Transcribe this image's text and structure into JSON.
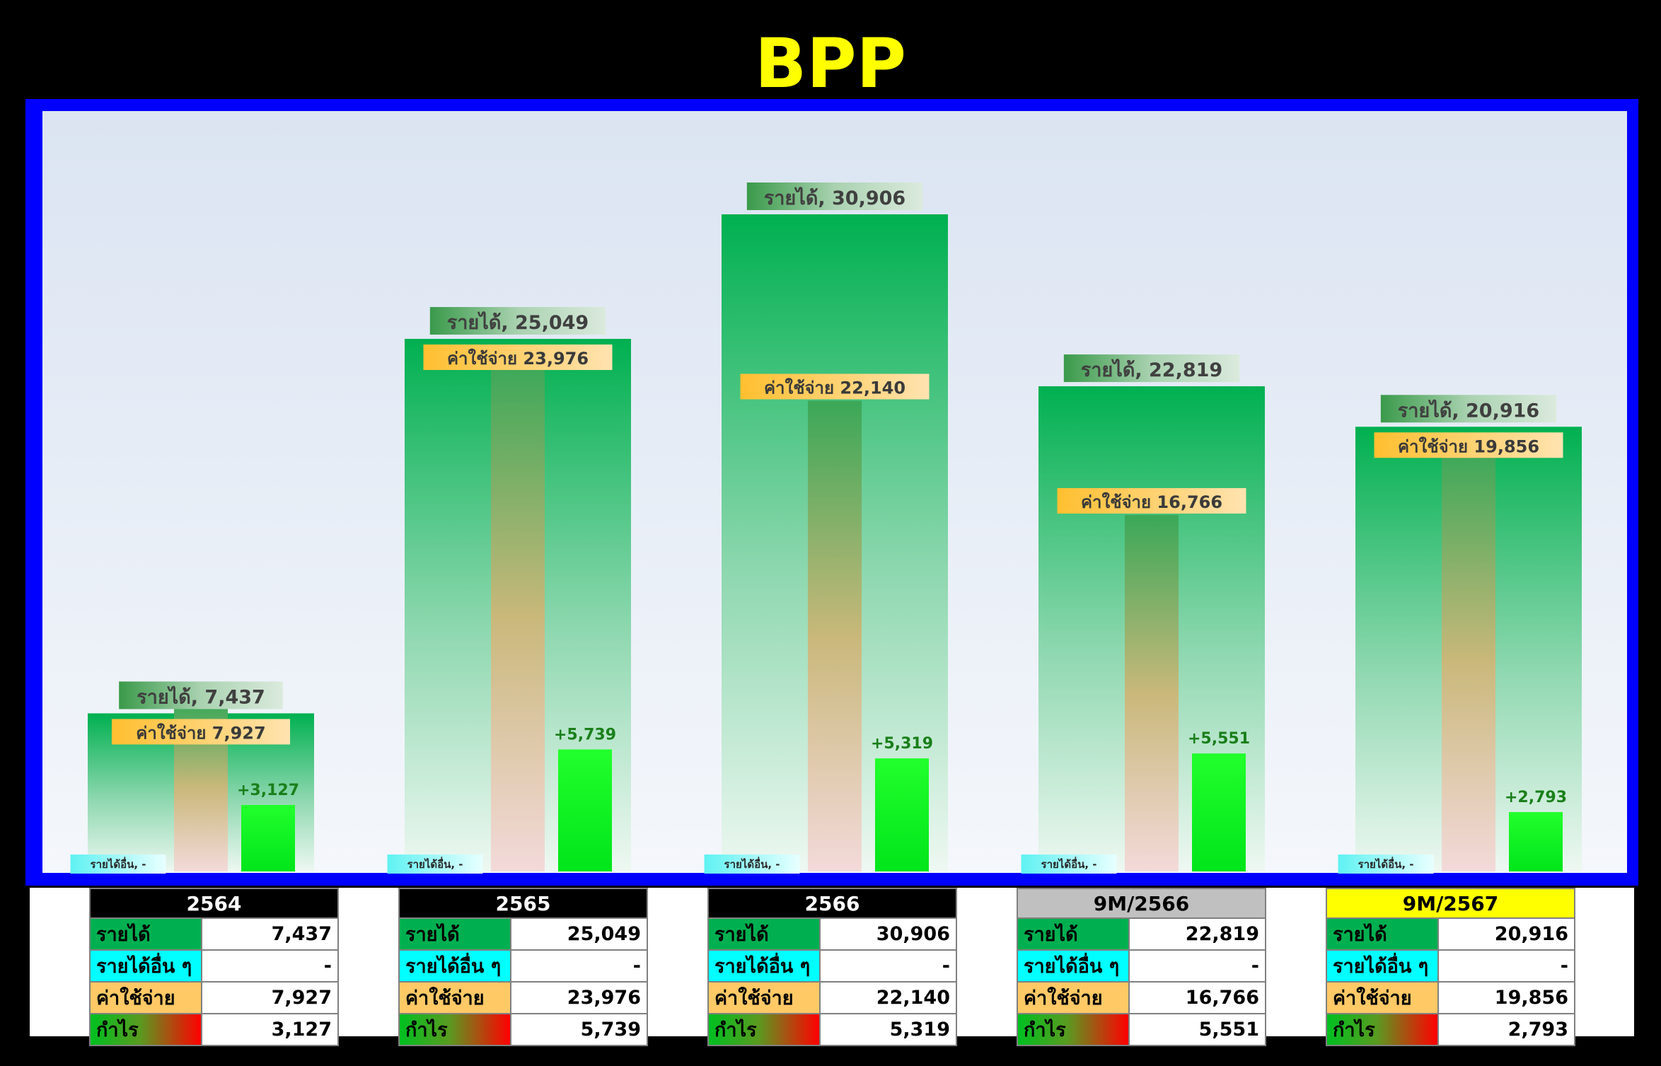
{
  "title": "BPP",
  "colors": {
    "background": "#000000",
    "title": "#ffff00",
    "frame": "#0000ff",
    "revenue": "#00b050",
    "other_income": "#00ffff",
    "expense": "#ffc966",
    "profit": "#1aff1a",
    "profit_label": "#1a7f1a"
  },
  "chart_data": {
    "type": "bar",
    "categories": [
      "2564",
      "2565",
      "2566",
      "9M/2566",
      "9M/2567"
    ],
    "series": [
      {
        "name": "รายได้",
        "values": [
          7437,
          25049,
          30906,
          22819,
          20916
        ]
      },
      {
        "name": "รายได้อื่น",
        "values": [
          0,
          0,
          0,
          0,
          0
        ]
      },
      {
        "name": "ค่าใช้จ่าย",
        "values": [
          7927,
          23976,
          22140,
          16766,
          19856
        ]
      },
      {
        "name": "กำไร",
        "values": [
          3127,
          5739,
          5319,
          5551,
          2793
        ]
      }
    ],
    "ylim": [
      0,
      34000
    ],
    "labels": {
      "revenue": [
        "รายได้, 7,437",
        "รายได้, 25,049",
        "รายได้, 30,906",
        "รายได้, 22,819",
        "รายได้, 20,916"
      ],
      "expense": [
        "ค่าใช้จ่าย 7,927",
        "ค่าใช้จ่าย 23,976",
        "ค่าใช้จ่าย 22,140",
        "ค่าใช้จ่าย 16,766",
        "ค่าใช้จ่าย 19,856"
      ],
      "profit": [
        "+3,127",
        "+5,739",
        "+5,319",
        "+5,551",
        "+2,793"
      ],
      "other": [
        "รายได้อื่น, -",
        "รายได้อื่น, -",
        "รายได้อื่น, -",
        "รายได้อื่น, -",
        "รายได้อื่น, -"
      ]
    }
  },
  "tables": [
    {
      "year": "2564",
      "header_bg": "#000000",
      "header_color": "#ffffff",
      "rows": {
        "revenue": {
          "label": "รายได้",
          "value": "7,437"
        },
        "other": {
          "label": "รายได้อื่น ๆ",
          "value": "-"
        },
        "expense": {
          "label": "ค่าใช้จ่าย",
          "value": "7,927"
        },
        "profit": {
          "label": "กำไร",
          "value": "3,127"
        }
      }
    },
    {
      "year": "2565",
      "header_bg": "#000000",
      "header_color": "#ffffff",
      "rows": {
        "revenue": {
          "label": "รายได้",
          "value": "25,049"
        },
        "other": {
          "label": "รายได้อื่น ๆ",
          "value": "-"
        },
        "expense": {
          "label": "ค่าใช้จ่าย",
          "value": "23,976"
        },
        "profit": {
          "label": "กำไร",
          "value": "5,739"
        }
      }
    },
    {
      "year": "2566",
      "header_bg": "#000000",
      "header_color": "#ffffff",
      "rows": {
        "revenue": {
          "label": "รายได้",
          "value": "30,906"
        },
        "other": {
          "label": "รายได้อื่น ๆ",
          "value": "-"
        },
        "expense": {
          "label": "ค่าใช้จ่าย",
          "value": "22,140"
        },
        "profit": {
          "label": "กำไร",
          "value": "5,319"
        }
      }
    },
    {
      "year": "9M/2566",
      "header_bg": "#c0c0c0",
      "header_color": "#000000",
      "rows": {
        "revenue": {
          "label": "รายได้",
          "value": "22,819"
        },
        "other": {
          "label": "รายได้อื่น ๆ",
          "value": "-"
        },
        "expense": {
          "label": "ค่าใช้จ่าย",
          "value": "16,766"
        },
        "profit": {
          "label": "กำไร",
          "value": "5,551"
        }
      }
    },
    {
      "year": "9M/2567",
      "header_bg": "#ffff00",
      "header_color": "#000000",
      "rows": {
        "revenue": {
          "label": "รายได้",
          "value": "20,916"
        },
        "other": {
          "label": "รายได้อื่น ๆ",
          "value": "-"
        },
        "expense": {
          "label": "ค่าใช้จ่าย",
          "value": "19,856"
        },
        "profit": {
          "label": "กำไร",
          "value": "2,793"
        }
      }
    }
  ]
}
